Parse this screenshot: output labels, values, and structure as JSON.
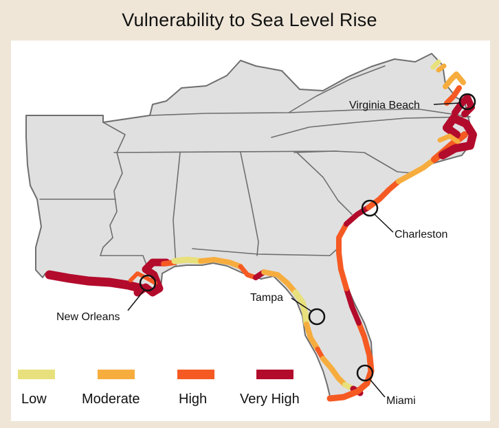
{
  "title": "Vulnerability to Sea Level Rise",
  "legend": {
    "items": [
      {
        "key": "low",
        "label": "Low",
        "color": "#e8e07c"
      },
      {
        "key": "moderate",
        "label": "Moderate",
        "color": "#f6ad3e"
      },
      {
        "key": "high",
        "label": "High",
        "color": "#f55a23"
      },
      {
        "key": "very_high",
        "label": "Very High",
        "color": "#b30b2c"
      }
    ]
  },
  "cities": [
    {
      "key": "virginia_beach",
      "label": "Virginia Beach"
    },
    {
      "key": "charleston",
      "label": "Charleston"
    },
    {
      "key": "new_orleans",
      "label": "New Orleans"
    },
    {
      "key": "tampa",
      "label": "Tampa"
    },
    {
      "key": "miami",
      "label": "Miami"
    }
  ],
  "colors": {
    "background": "#efe6d8",
    "panel": "#ffffff",
    "land": "#e0e0e0",
    "state_border": "#6e6e6e"
  }
}
